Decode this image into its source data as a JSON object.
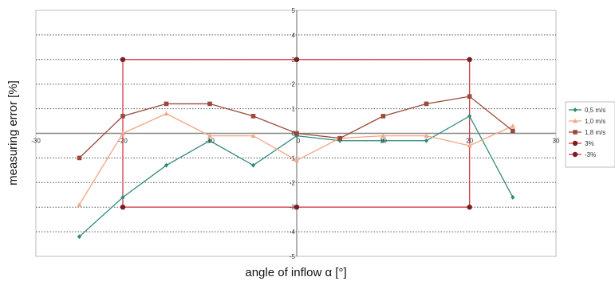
{
  "chart_data": {
    "type": "line",
    "title": "",
    "xlabel": "angle of inflow α [°]",
    "ylabel": "measuring error [%]",
    "xlim": [
      -30,
      30
    ],
    "ylim": [
      -5,
      5
    ],
    "x_ticks": [
      "-30",
      "-20",
      "-10",
      "0",
      "10",
      "20",
      "30"
    ],
    "y_ticks": [
      "5",
      "4",
      "3",
      "2",
      "1",
      "0",
      "-1",
      "-2",
      "-3",
      "-4",
      "-5"
    ],
    "grid": "horizontal dotted",
    "legend_position": "right",
    "series": [
      {
        "name": "0,5 m/s",
        "color": "#2e8b7a",
        "marker": "diamond",
        "x": [
          -25,
          -20,
          -15,
          -10,
          -5,
          0,
          5,
          10,
          15,
          20,
          25
        ],
        "y": [
          -4.2,
          -2.6,
          -1.3,
          -0.3,
          -1.3,
          -0.1,
          -0.3,
          -0.3,
          -0.3,
          0.7,
          -2.6
        ]
      },
      {
        "name": "1,0 m/s",
        "color": "#f4a582",
        "marker": "triangle",
        "x": [
          -25,
          -20,
          -15,
          -10,
          -5,
          0,
          5,
          10,
          15,
          20,
          25
        ],
        "y": [
          -2.9,
          0.0,
          0.8,
          -0.1,
          -0.1,
          -1.1,
          -0.2,
          -0.1,
          -0.1,
          -0.5,
          0.3
        ]
      },
      {
        "name": "1,8 m/s",
        "color": "#9b4a3a",
        "marker": "square",
        "x": [
          -25,
          -20,
          -15,
          -10,
          -5,
          0,
          5,
          10,
          15,
          20,
          25
        ],
        "y": [
          -1.0,
          0.7,
          1.2,
          1.2,
          0.7,
          0.0,
          -0.2,
          0.7,
          1.2,
          1.5,
          0.1
        ]
      },
      {
        "name": "3%",
        "color": "#7a1e1e",
        "marker": "circle",
        "line_color": "#d63c4c",
        "x": [
          -20,
          0,
          20
        ],
        "y": [
          3,
          3,
          3
        ]
      },
      {
        "name": "-3%",
        "color": "#d63c4c",
        "marker": "circle",
        "marker_color": "#7a1e1e",
        "x": [
          -20,
          0,
          20
        ],
        "y": [
          -3,
          -3,
          -3
        ]
      }
    ]
  }
}
